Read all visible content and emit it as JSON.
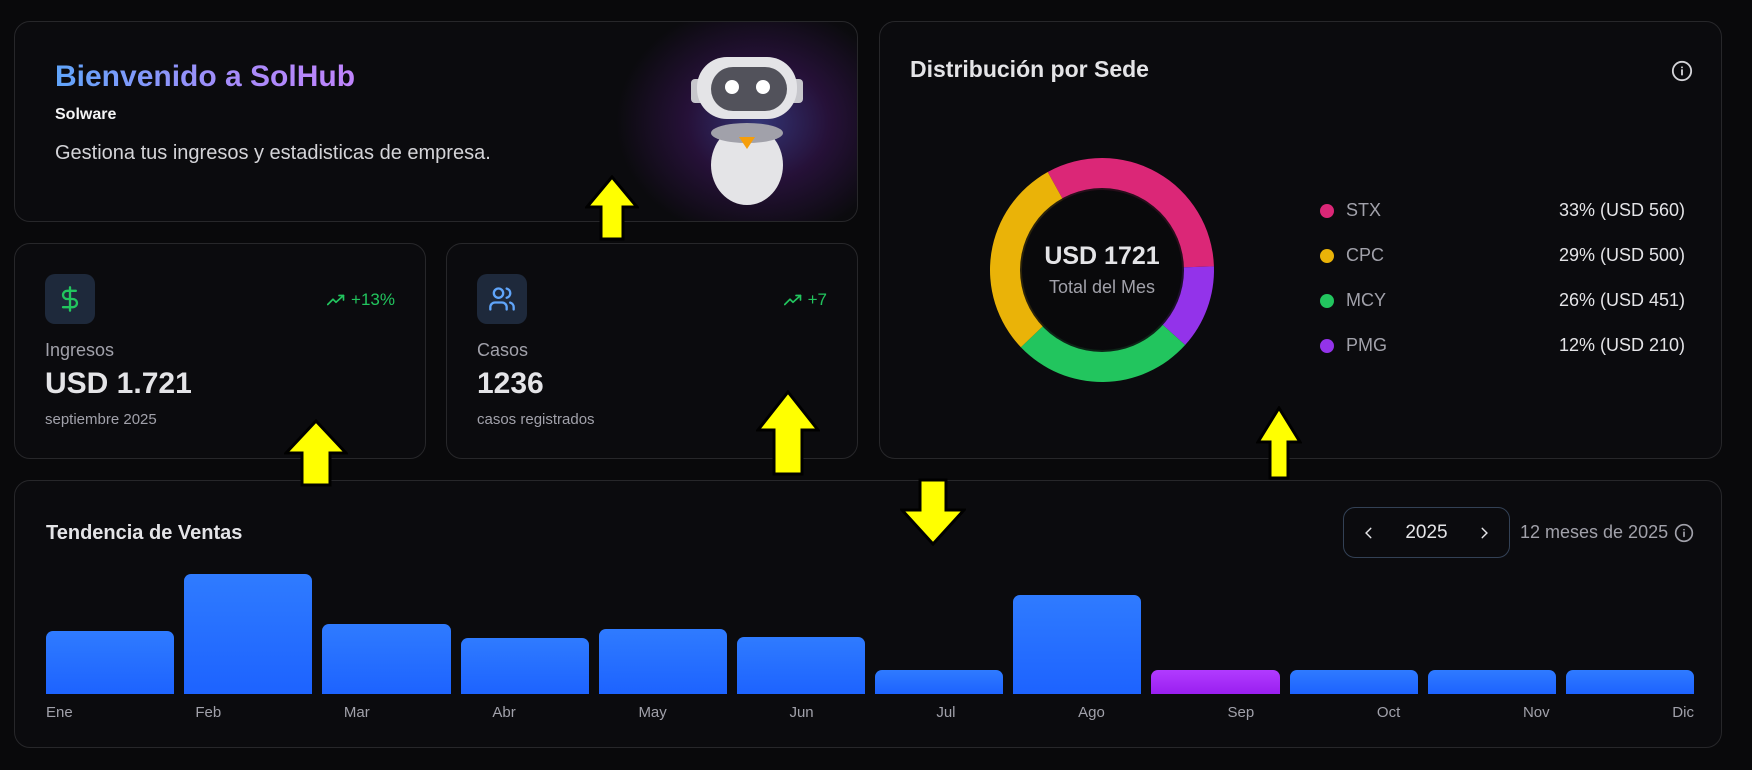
{
  "welcome": {
    "title": "Bienvenido a SolHub",
    "company": "Solware",
    "subtitle": "Gestiona tus ingresos y estadisticas de empresa."
  },
  "stats": [
    {
      "icon": "dollar-icon",
      "trend_icon": "trending-up-icon",
      "trend": "+13%",
      "label": "Ingresos",
      "value": "USD 1.721",
      "sub": "septiembre 2025"
    },
    {
      "icon": "users-icon",
      "trend_icon": "trending-up-icon",
      "trend": "+7",
      "label": "Casos",
      "value": "1236",
      "sub": "casos registrados"
    }
  ],
  "distribution": {
    "title": "Distribución por Sede",
    "info_icon": "info-icon",
    "center_amount": "USD 1721",
    "center_caption": "Total del Mes",
    "items": [
      {
        "name": "STX",
        "value": "33% (USD 560)",
        "color": "#db2777"
      },
      {
        "name": "CPC",
        "value": "29% (USD 500)",
        "color": "#eab308"
      },
      {
        "name": "MCY",
        "value": "26% (USD 451)",
        "color": "#22c55e"
      },
      {
        "name": "PMG",
        "value": "12% (USD 210)",
        "color": "#9333ea"
      }
    ]
  },
  "sales": {
    "title": "Tendencia de Ventas",
    "year": "2025",
    "range_text": "12 meses de 2025",
    "prev_icon": "chevron-left-icon",
    "next_icon": "chevron-right-icon",
    "info_icon": "info-icon",
    "months": [
      "Ene",
      "Feb",
      "Mar",
      "Abr",
      "May",
      "Jun",
      "Jul",
      "Ago",
      "Sep",
      "Oct",
      "Nov",
      "Dic"
    ],
    "current_month_index": 8
  },
  "colors": {
    "accent_blue": "#1d63ff",
    "current_month": "#9a1ff0",
    "trend_green": "#22c55e",
    "background": "#09090b"
  },
  "chart_data": [
    {
      "type": "pie",
      "title": "Distribución por Sede",
      "categories": [
        "STX",
        "CPC",
        "MCY",
        "PMG"
      ],
      "values": [
        560,
        500,
        451,
        210
      ],
      "percentages": [
        33,
        29,
        26,
        12
      ],
      "colors": [
        "#db2777",
        "#eab308",
        "#22c55e",
        "#9333ea"
      ],
      "center_label": "USD 1721 Total del Mes",
      "legend_position": "right"
    },
    {
      "type": "bar",
      "title": "Tendencia de Ventas",
      "categories": [
        "Ene",
        "Feb",
        "Mar",
        "Abr",
        "May",
        "Jun",
        "Jul",
        "Ago",
        "Sep",
        "Oct",
        "Nov",
        "Dic"
      ],
      "relative_heights": [
        63,
        120,
        70,
        56,
        65,
        57,
        24,
        99,
        24,
        24,
        24,
        24
      ],
      "xlabel": "",
      "ylabel": "",
      "grid": false,
      "highlight_index": 8
    }
  ]
}
